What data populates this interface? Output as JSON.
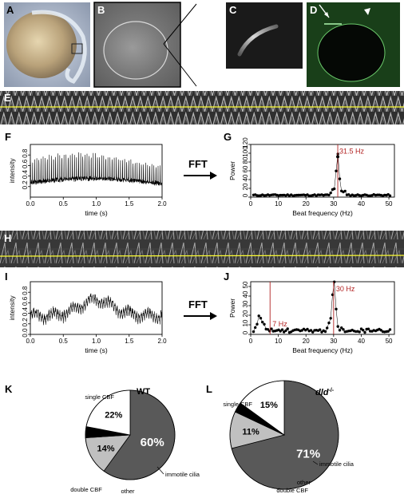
{
  "panels": {
    "A": "A",
    "B": "B",
    "C": "C",
    "D": "D",
    "E": "E",
    "F": "F",
    "G": "G",
    "H": "H",
    "I": "I",
    "J": "J",
    "K": "K",
    "L": "L"
  },
  "fft_label": "FFT",
  "chart_data": [
    {
      "id": "F",
      "type": "line",
      "xlabel": "time (s)",
      "ylabel": "intensity",
      "xlim": [
        0.0,
        2.0
      ],
      "ylim": [
        0.0,
        1.0
      ],
      "xticks": [
        "0.0",
        "0.5",
        "1.0",
        "1.5",
        "2.0"
      ],
      "yticks": [
        "0.2",
        "0.4",
        "0.6",
        "0.8"
      ],
      "beat_frequency_hz": 31.5
    },
    {
      "id": "G",
      "type": "scatter",
      "xlabel": "Beat frequency (Hz)",
      "ylabel": "Power",
      "xlim": [
        0,
        52
      ],
      "ylim": [
        0,
        120
      ],
      "xticks": [
        "0",
        "10",
        "20",
        "30",
        "40",
        "50"
      ],
      "yticks": [
        "0",
        "20",
        "40",
        "60",
        "80",
        "100",
        "120"
      ],
      "peak_x": 31.5,
      "peak_y": 92,
      "annotation": "31.5 Hz"
    },
    {
      "id": "I",
      "type": "line",
      "xlabel": "time (s)",
      "ylabel": "intensity",
      "xlim": [
        0.0,
        2.0
      ],
      "ylim": [
        0.0,
        1.0
      ],
      "xticks": [
        "0.0",
        "0.5",
        "1.0",
        "1.5",
        "2.0"
      ],
      "yticks": [
        "0.0",
        "0.2",
        "0.4",
        "0.6",
        "0.8"
      ]
    },
    {
      "id": "J",
      "type": "scatter",
      "xlabel": "Beat frequency (Hz)",
      "ylabel": "Power",
      "xlim": [
        0,
        52
      ],
      "ylim": [
        0,
        55
      ],
      "xticks": [
        "0",
        "10",
        "20",
        "30",
        "40",
        "50"
      ],
      "yticks": [
        "0",
        "10",
        "20",
        "30",
        "40",
        "50"
      ],
      "peaks": [
        {
          "x": 7,
          "y": 3,
          "label": "7 Hz"
        },
        {
          "x": 30,
          "y": 47,
          "label": "30 Hz"
        }
      ]
    },
    {
      "id": "K",
      "type": "pie",
      "title": "WT",
      "slices": [
        {
          "label": "single CBF",
          "value": 60,
          "text": "60%",
          "color": "#595959"
        },
        {
          "label": "double CBF",
          "value": 14,
          "text": "14%",
          "color": "#c0c0c0"
        },
        {
          "label": "other",
          "value": 4,
          "text": "",
          "color": "#000000"
        },
        {
          "label": "immotile cilia",
          "value": 22,
          "text": "22%",
          "color": "#ffffff"
        }
      ]
    },
    {
      "id": "L",
      "type": "pie",
      "title": "dld",
      "title_superscript": "-/-",
      "slices": [
        {
          "label": "single CBF",
          "value": 71,
          "text": "71%",
          "color": "#595959"
        },
        {
          "label": "double CBF",
          "value": 11,
          "text": "11%",
          "color": "#c0c0c0"
        },
        {
          "label": "other",
          "value": 3,
          "text": "",
          "color": "#000000"
        },
        {
          "label": "immotile cilia",
          "value": 15,
          "text": "15%",
          "color": "#ffffff"
        }
      ]
    }
  ],
  "colors": {
    "annotation": "#b22222",
    "kymograph_line": "#ffff33",
    "fluorescence": "#3fa03f"
  }
}
